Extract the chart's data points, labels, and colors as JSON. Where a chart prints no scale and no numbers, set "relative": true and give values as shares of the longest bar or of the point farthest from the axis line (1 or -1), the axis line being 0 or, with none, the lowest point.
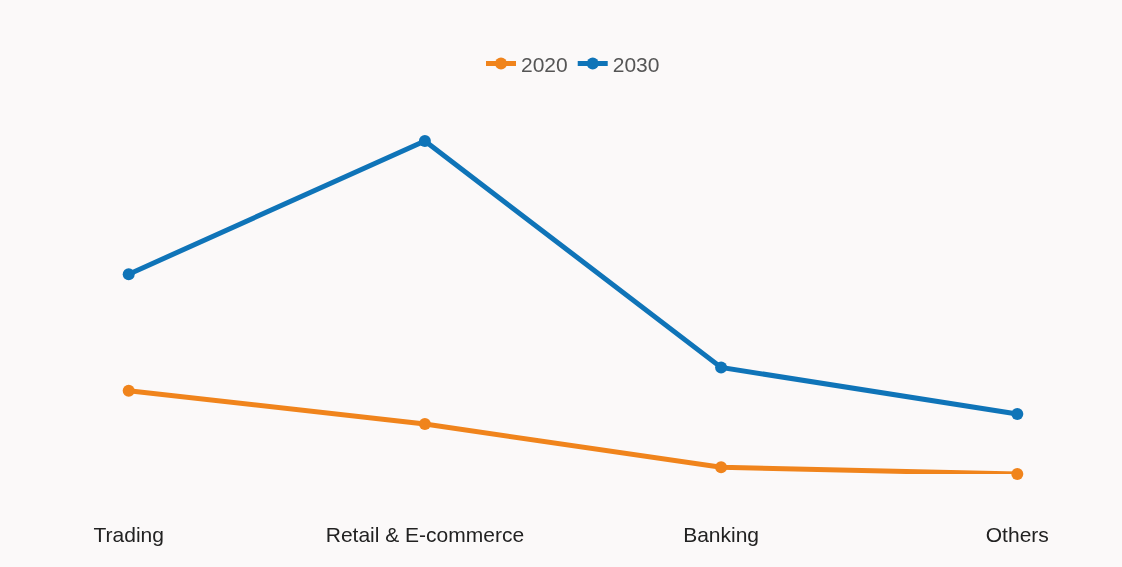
{
  "chart_data": {
    "type": "line",
    "relative": true,
    "categories": [
      "Trading",
      "Retail & E-commerce",
      "Banking",
      "Others"
    ],
    "series": [
      {
        "name": "2020",
        "color": "#f0841c",
        "values": [
          0.25,
          0.15,
          0.02,
          0
        ]
      },
      {
        "name": "2030",
        "color": "#0f74b8",
        "values": [
          0.6,
          1,
          0.32,
          0.18
        ]
      }
    ],
    "legend": "top",
    "marker": "circle",
    "line_style": "solid",
    "grid": false
  }
}
